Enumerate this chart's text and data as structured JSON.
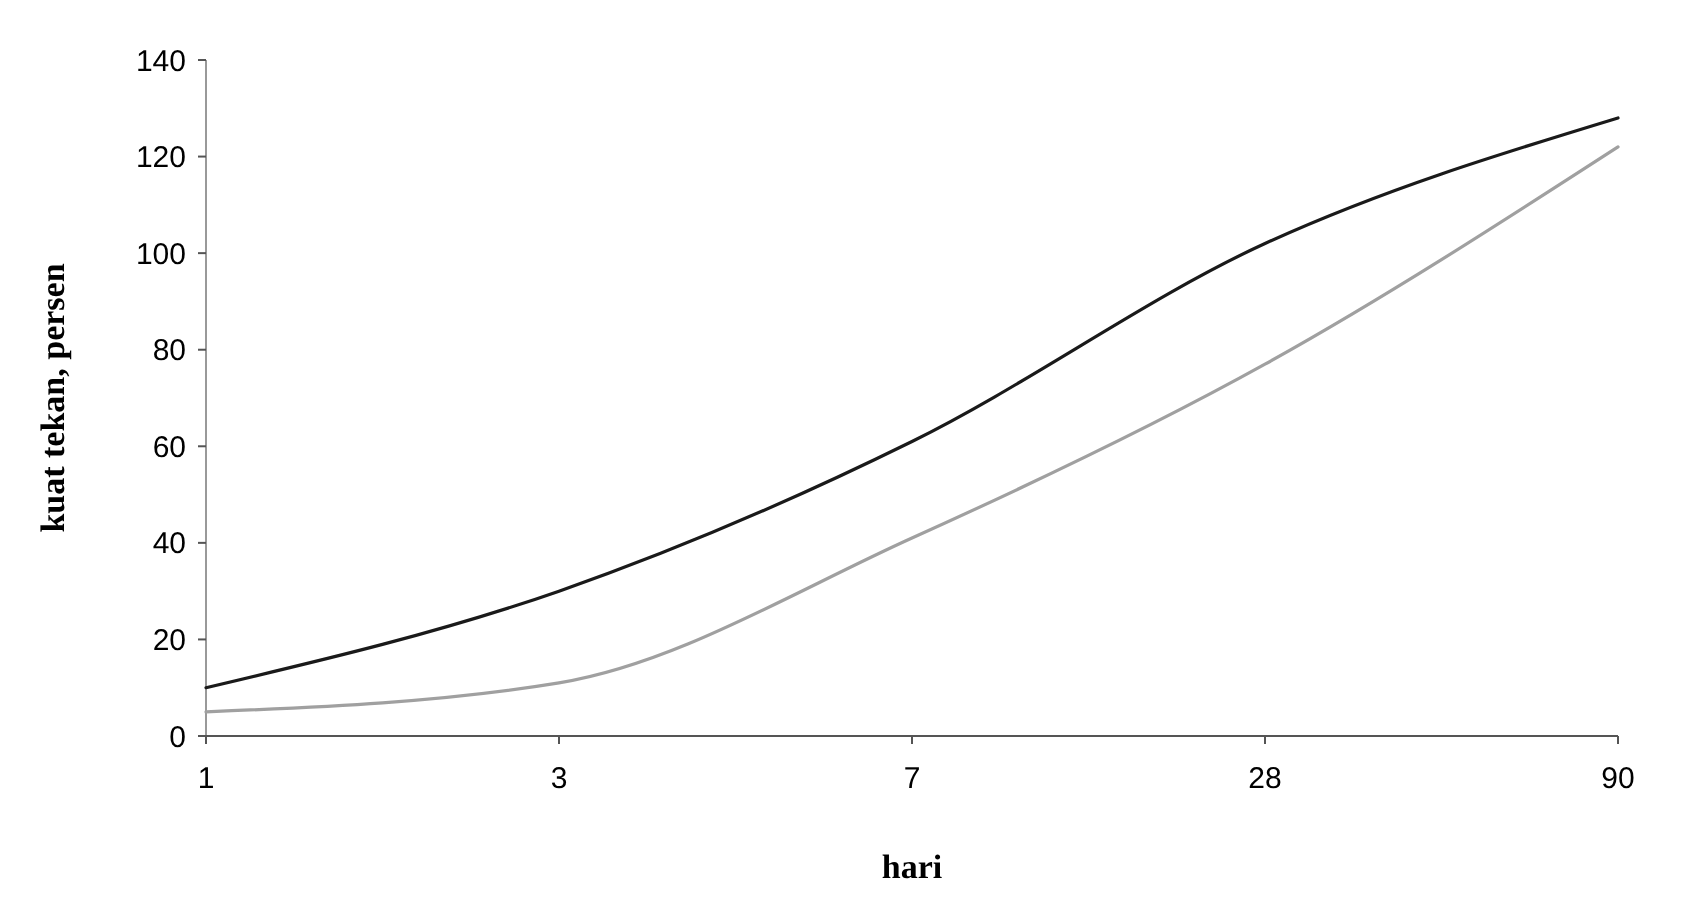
{
  "chart_data": {
    "type": "line",
    "xlabel": "hari",
    "ylabel": "kuat tekan, persen",
    "categories": [
      "1",
      "3",
      "7",
      "28",
      "90"
    ],
    "series": [
      {
        "color": "#1a1a1a",
        "values": [
          10,
          30,
          61,
          102,
          128
        ]
      },
      {
        "color": "#a0a0a0",
        "values": [
          5,
          11,
          41,
          77,
          122
        ]
      }
    ],
    "ylim": [
      0,
      140
    ],
    "yticks": [
      0,
      20,
      40,
      60,
      80,
      100,
      120,
      140
    ],
    "grid": false,
    "marker": "none",
    "line_style": "solid"
  }
}
